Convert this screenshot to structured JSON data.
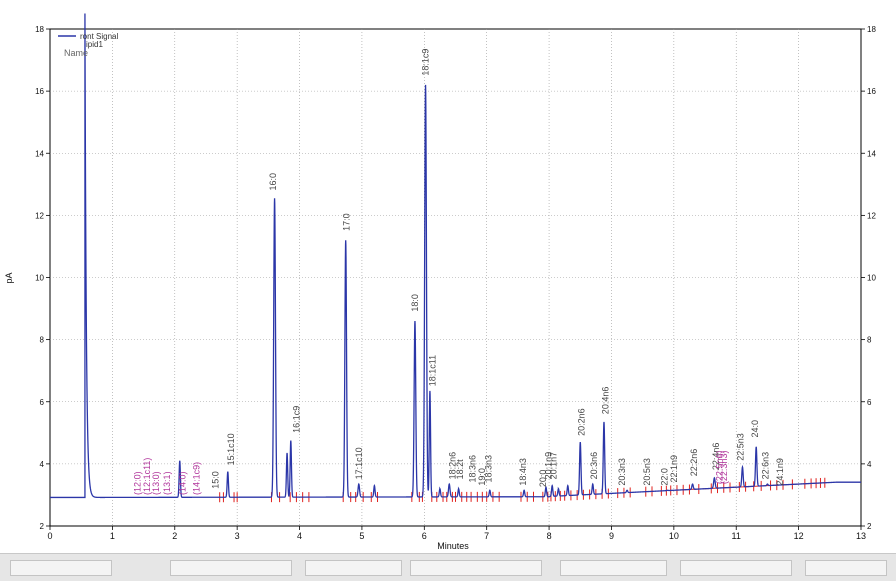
{
  "chart_data": {
    "type": "line",
    "title": "",
    "xlabel": "Minutes",
    "ylabel": "pA",
    "xlim": [
      0,
      13
    ],
    "ylim": [
      2,
      18
    ],
    "x_ticks": [
      0,
      1,
      2,
      3,
      4,
      5,
      6,
      7,
      8,
      9,
      10,
      11,
      12,
      13
    ],
    "y_ticks": [
      2,
      4,
      6,
      8,
      10,
      12,
      14,
      16,
      18
    ],
    "grid": true,
    "legend": {
      "position": "top-left",
      "series_label": "ront Signal",
      "line2": "ipid1",
      "line3": "Name"
    },
    "colors": {
      "signal": "#2b36a8",
      "baseline": "#e0201c",
      "named_peak": "#444444",
      "expected_peak": "#b0339a"
    },
    "series": [
      {
        "name": "ront Signal",
        "peaks": [
          {
            "x": 0.56,
            "y": 18.5,
            "w": 0.015
          },
          {
            "x": 2.08,
            "y": 4.1,
            "w": 0.01
          },
          {
            "x": 2.85,
            "y": 3.75,
            "w": 0.01
          },
          {
            "x": 3.6,
            "y": 12.55,
            "w": 0.014
          },
          {
            "x": 3.8,
            "y": 4.35,
            "w": 0.01
          },
          {
            "x": 3.86,
            "y": 4.75,
            "w": 0.01
          },
          {
            "x": 4.74,
            "y": 11.2,
            "w": 0.013
          },
          {
            "x": 4.95,
            "y": 3.35,
            "w": 0.012
          },
          {
            "x": 5.2,
            "y": 3.3,
            "w": 0.01
          },
          {
            "x": 5.85,
            "y": 8.6,
            "w": 0.013
          },
          {
            "x": 6.02,
            "y": 16.2,
            "w": 0.014
          },
          {
            "x": 6.09,
            "y": 6.35,
            "w": 0.01
          },
          {
            "x": 6.25,
            "y": 3.2,
            "w": 0.01
          },
          {
            "x": 6.4,
            "y": 3.35,
            "w": 0.012
          },
          {
            "x": 6.55,
            "y": 3.2,
            "w": 0.01
          },
          {
            "x": 7.05,
            "y": 3.15,
            "w": 0.01
          },
          {
            "x": 7.6,
            "y": 3.15,
            "w": 0.01
          },
          {
            "x": 7.95,
            "y": 3.25,
            "w": 0.01
          },
          {
            "x": 8.05,
            "y": 3.3,
            "w": 0.01
          },
          {
            "x": 8.15,
            "y": 3.2,
            "w": 0.01
          },
          {
            "x": 8.3,
            "y": 3.3,
            "w": 0.01
          },
          {
            "x": 8.5,
            "y": 4.7,
            "w": 0.011
          },
          {
            "x": 8.7,
            "y": 3.35,
            "w": 0.01
          },
          {
            "x": 8.88,
            "y": 5.35,
            "w": 0.011
          },
          {
            "x": 9.25,
            "y": 3.15,
            "w": 0.01
          },
          {
            "x": 9.9,
            "y": 3.15,
            "w": 0.01
          },
          {
            "x": 10.3,
            "y": 3.35,
            "w": 0.011
          },
          {
            "x": 10.65,
            "y": 3.55,
            "w": 0.012
          },
          {
            "x": 11.1,
            "y": 3.9,
            "w": 0.011
          },
          {
            "x": 11.32,
            "y": 4.55,
            "w": 0.011
          },
          {
            "x": 11.5,
            "y": 3.35,
            "w": 0.01
          },
          {
            "x": 11.7,
            "y": 3.2,
            "w": 0.01
          }
        ]
      }
    ],
    "peak_labels": [
      {
        "text": "15:0",
        "x": 2.7,
        "y": 3.2
      },
      {
        "text": "15:1c10",
        "x": 2.95,
        "y": 3.95
      },
      {
        "text": "16:0",
        "x": 3.62,
        "y": 12.8
      },
      {
        "text": "16:1c9",
        "x": 4.0,
        "y": 5.0
      },
      {
        "text": "17:0",
        "x": 4.8,
        "y": 11.5
      },
      {
        "text": "17:1c10",
        "x": 5.0,
        "y": 3.5
      },
      {
        "text": "18:0",
        "x": 5.9,
        "y": 8.9
      },
      {
        "text": "18:1c9",
        "x": 6.07,
        "y": 16.5
      },
      {
        "text": "18:1c11",
        "x": 6.18,
        "y": 6.5
      },
      {
        "text": "18:2n6",
        "x": 6.5,
        "y": 3.5
      },
      {
        "text": "18:2t",
        "x": 6.62,
        "y": 3.5
      },
      {
        "text": "18:3n6",
        "x": 6.82,
        "y": 3.4
      },
      {
        "text": "19:0",
        "x": 6.97,
        "y": 3.3
      },
      {
        "text": "18:3n3",
        "x": 7.08,
        "y": 3.4
      },
      {
        "text": "18:4n3",
        "x": 7.63,
        "y": 3.3
      },
      {
        "text": "20:0",
        "x": 7.95,
        "y": 3.25
      },
      {
        "text": "20:1n9",
        "x": 8.04,
        "y": 3.5
      },
      {
        "text": "20:1n7",
        "x": 8.12,
        "y": 3.5
      },
      {
        "text": "20:2n6",
        "x": 8.57,
        "y": 4.9
      },
      {
        "text": "20:3n6",
        "x": 8.77,
        "y": 3.5
      },
      {
        "text": "20:4n6",
        "x": 8.95,
        "y": 5.6
      },
      {
        "text": "20:3n3",
        "x": 9.22,
        "y": 3.3
      },
      {
        "text": "20:5n3",
        "x": 9.62,
        "y": 3.3
      },
      {
        "text": "22:0",
        "x": 9.9,
        "y": 3.3
      },
      {
        "text": "22:1n9",
        "x": 10.05,
        "y": 3.4
      },
      {
        "text": "22:2n6",
        "x": 10.37,
        "y": 3.6
      },
      {
        "text": "22:4n6",
        "x": 10.72,
        "y": 3.8
      },
      {
        "text": "22:5n3",
        "x": 11.12,
        "y": 4.1
      },
      {
        "text": "24:0",
        "x": 11.35,
        "y": 4.85
      },
      {
        "text": "22:6n3",
        "x": 11.52,
        "y": 3.5
      },
      {
        "text": "24:1n9",
        "x": 11.75,
        "y": 3.3
      }
    ],
    "expected_labels": [
      {
        "text": "(12:0)",
        "x": 1.45,
        "y": 3.0
      },
      {
        "text": "(12:1c11)",
        "x": 1.6,
        "y": 3.0
      },
      {
        "text": "(13:0)",
        "x": 1.75,
        "y": 3.0
      },
      {
        "text": "(13:1)",
        "x": 1.92,
        "y": 3.0
      },
      {
        "text": "(14:0)",
        "x": 2.17,
        "y": 3.0
      },
      {
        "text": "(14:1c9)",
        "x": 2.4,
        "y": 3.0
      },
      {
        "text": "(22:5n6)",
        "x": 10.78,
        "y": 3.35
      },
      {
        "text": "(22:3n3)",
        "x": 10.85,
        "y": 3.35
      }
    ],
    "baseline_ticks_x": [
      2.72,
      2.78,
      2.95,
      3.0,
      3.55,
      3.68,
      3.85,
      3.95,
      4.05,
      4.15,
      4.7,
      4.82,
      4.9,
      5.02,
      5.15,
      5.25,
      5.8,
      5.92,
      5.97,
      6.12,
      6.2,
      6.3,
      6.36,
      6.45,
      6.5,
      6.6,
      6.68,
      6.75,
      6.85,
      6.93,
      7.0,
      7.1,
      7.2,
      7.55,
      7.65,
      7.75,
      7.9,
      7.98,
      8.03,
      8.1,
      8.18,
      8.25,
      8.35,
      8.45,
      8.55,
      8.65,
      8.75,
      8.85,
      8.95,
      9.1,
      9.2,
      9.3,
      9.55,
      9.65,
      9.8,
      9.88,
      9.95,
      10.05,
      10.15,
      10.25,
      10.4,
      10.6,
      10.7,
      10.8,
      10.9,
      11.05,
      11.15,
      11.28,
      11.4,
      11.55,
      11.65,
      11.75,
      11.9,
      12.1,
      12.2,
      12.28,
      12.35,
      12.42
    ]
  }
}
